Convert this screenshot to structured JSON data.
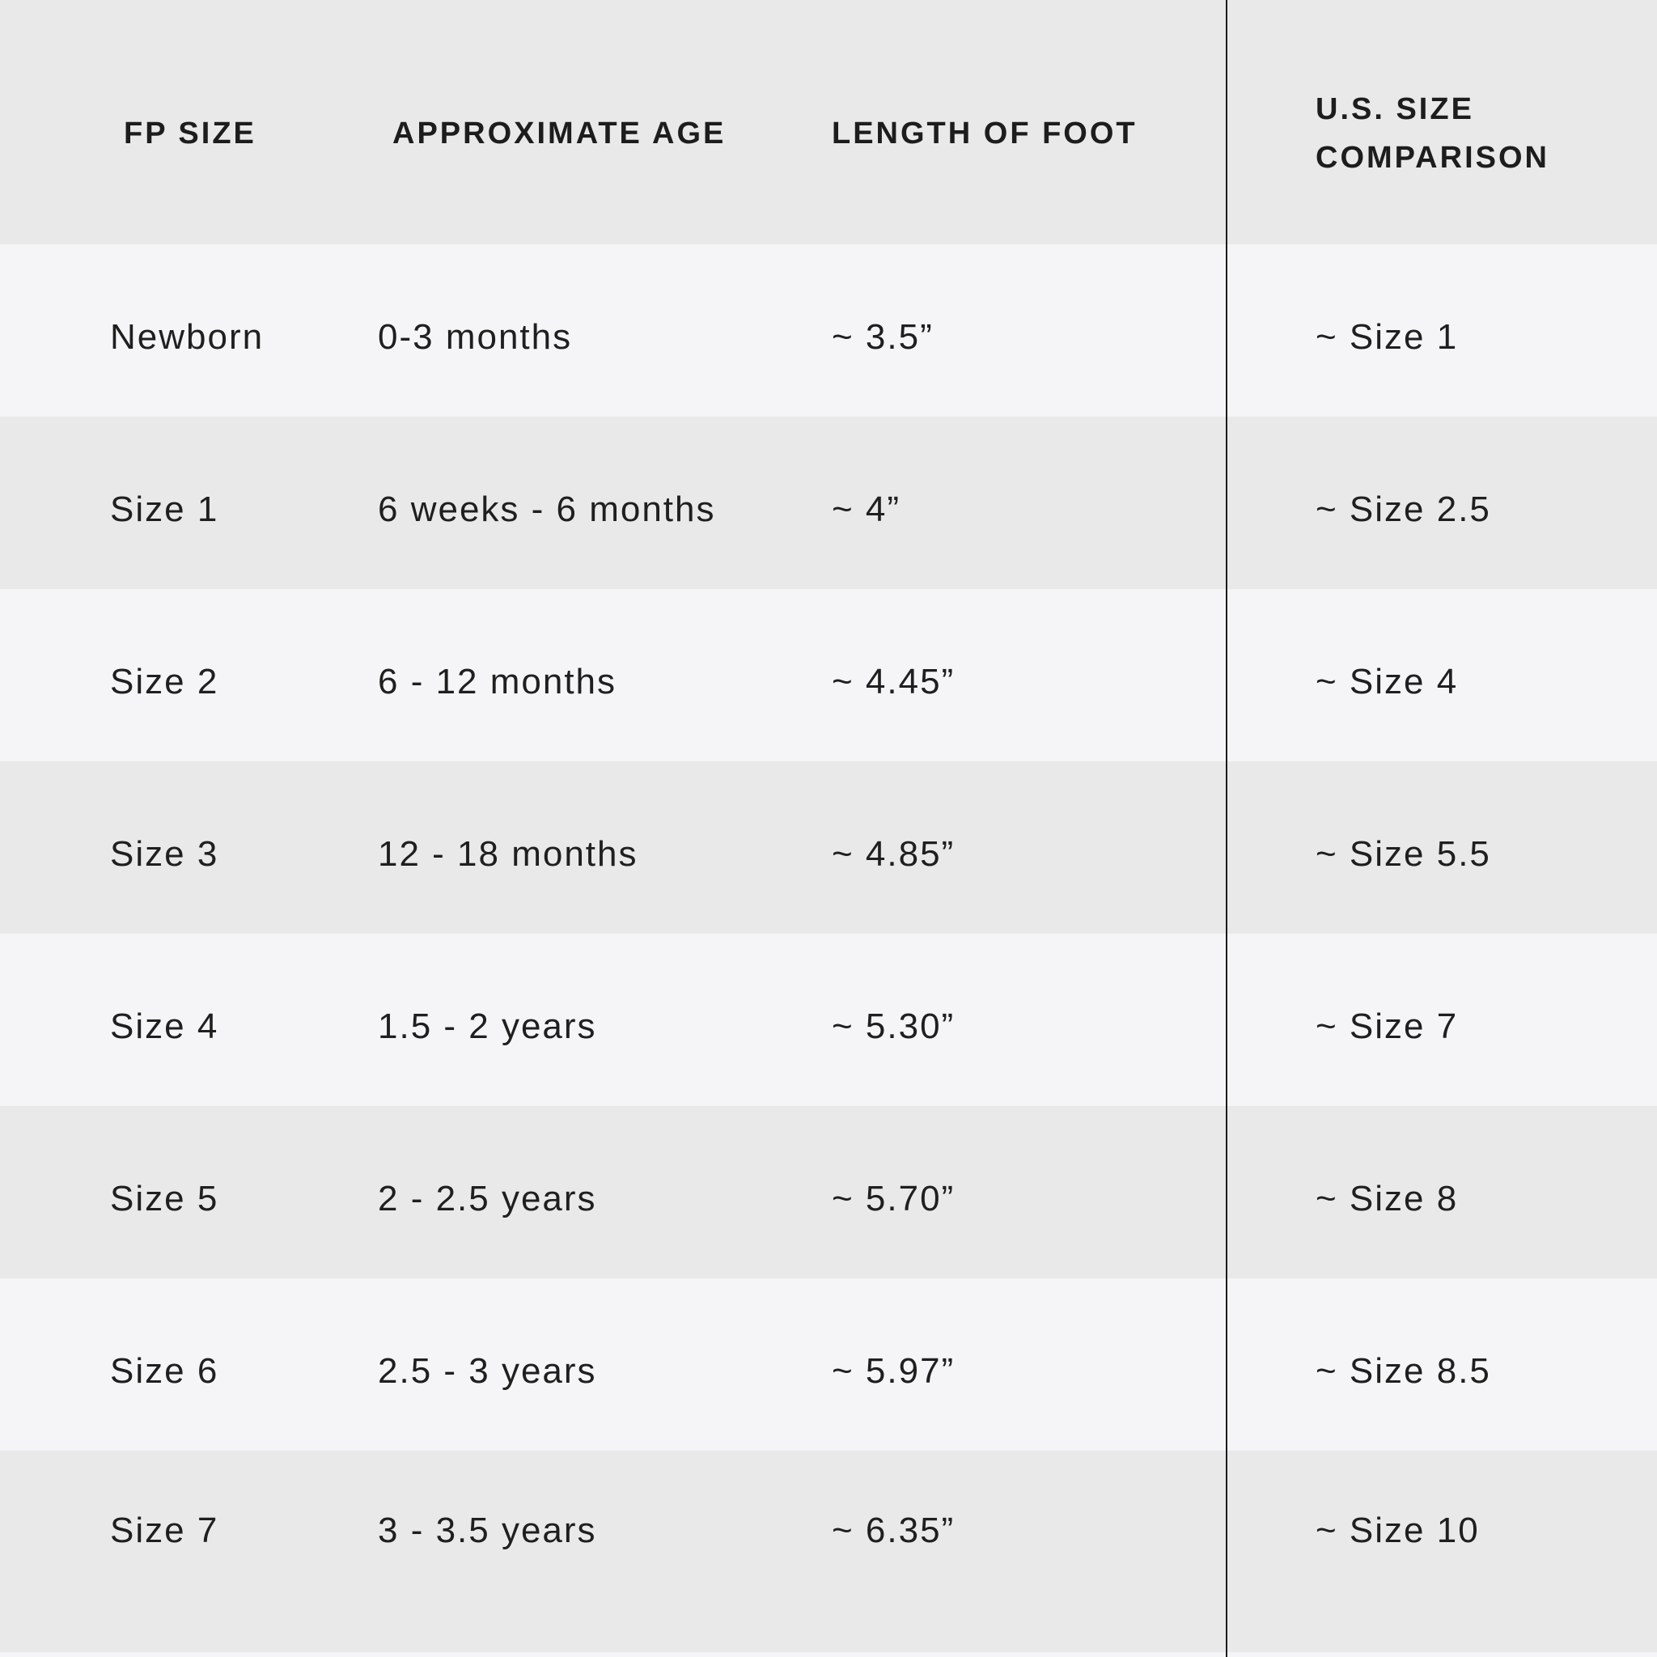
{
  "colors": {
    "row_gray": "#e9e9e9",
    "row_light": "#f5f5f7",
    "divider_line": "#1c1c1c",
    "text": "#1f1f1f"
  },
  "chart_data": {
    "type": "table",
    "columns": [
      "FP SIZE",
      "APPROXIMATE AGE",
      "LENGTH OF FOOT",
      "U.S. SIZE COMPARISON"
    ],
    "rows": [
      [
        "Newborn",
        "0-3 months",
        "~ 3.5”",
        "~ Size 1"
      ],
      [
        "Size 1",
        "6 weeks - 6 months",
        "~ 4”",
        "~ Size 2.5"
      ],
      [
        "Size 2",
        "6 - 12 months",
        "~ 4.45”",
        "~ Size 4"
      ],
      [
        "Size 3",
        "12 - 18 months",
        "~ 4.85”",
        "~ Size 5.5"
      ],
      [
        "Size 4",
        "1.5 - 2 years",
        "~ 5.30”",
        "~ Size 7"
      ],
      [
        "Size 5",
        "2 - 2.5 years",
        "~ 5.70”",
        "~ Size 8"
      ],
      [
        "Size 6",
        "2.5 - 3 years",
        "~ 5.97”",
        "~ Size 8.5"
      ],
      [
        "Size 7",
        "3 - 3.5 years",
        "~ 6.35”",
        "~ Size 10"
      ]
    ],
    "layout": {
      "grid": false,
      "alternating_row_shading": true,
      "vertical_divider_before_last_column": true
    }
  }
}
